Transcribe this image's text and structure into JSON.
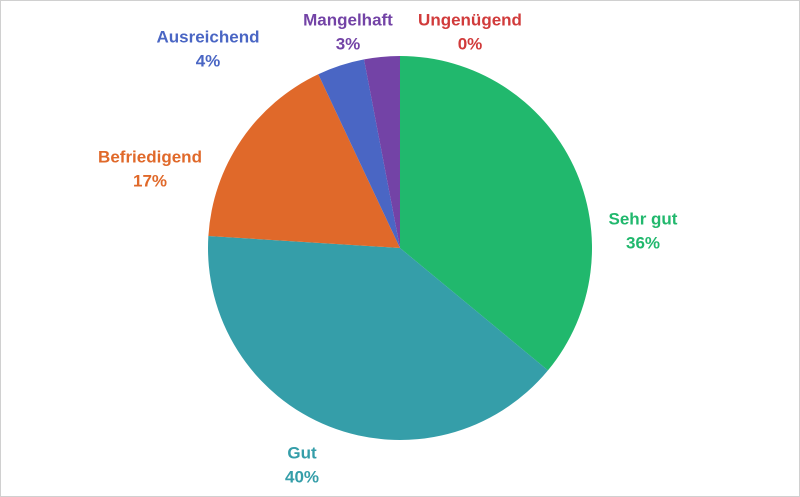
{
  "chart_data": {
    "type": "pie",
    "categories": [
      "Sehr gut",
      "Gut",
      "Befriedigend",
      "Ausreichend",
      "Mangelhaft",
      "Ungenügend"
    ],
    "values": [
      36,
      40,
      17,
      4,
      3,
      0
    ],
    "value_labels": [
      "36%",
      "40%",
      "17%",
      "4%",
      "3%",
      "0%"
    ],
    "colors": [
      "#21b86d",
      "#359ea9",
      "#e0692a",
      "#4a66c4",
      "#7343a6",
      "#d13b3b"
    ]
  }
}
